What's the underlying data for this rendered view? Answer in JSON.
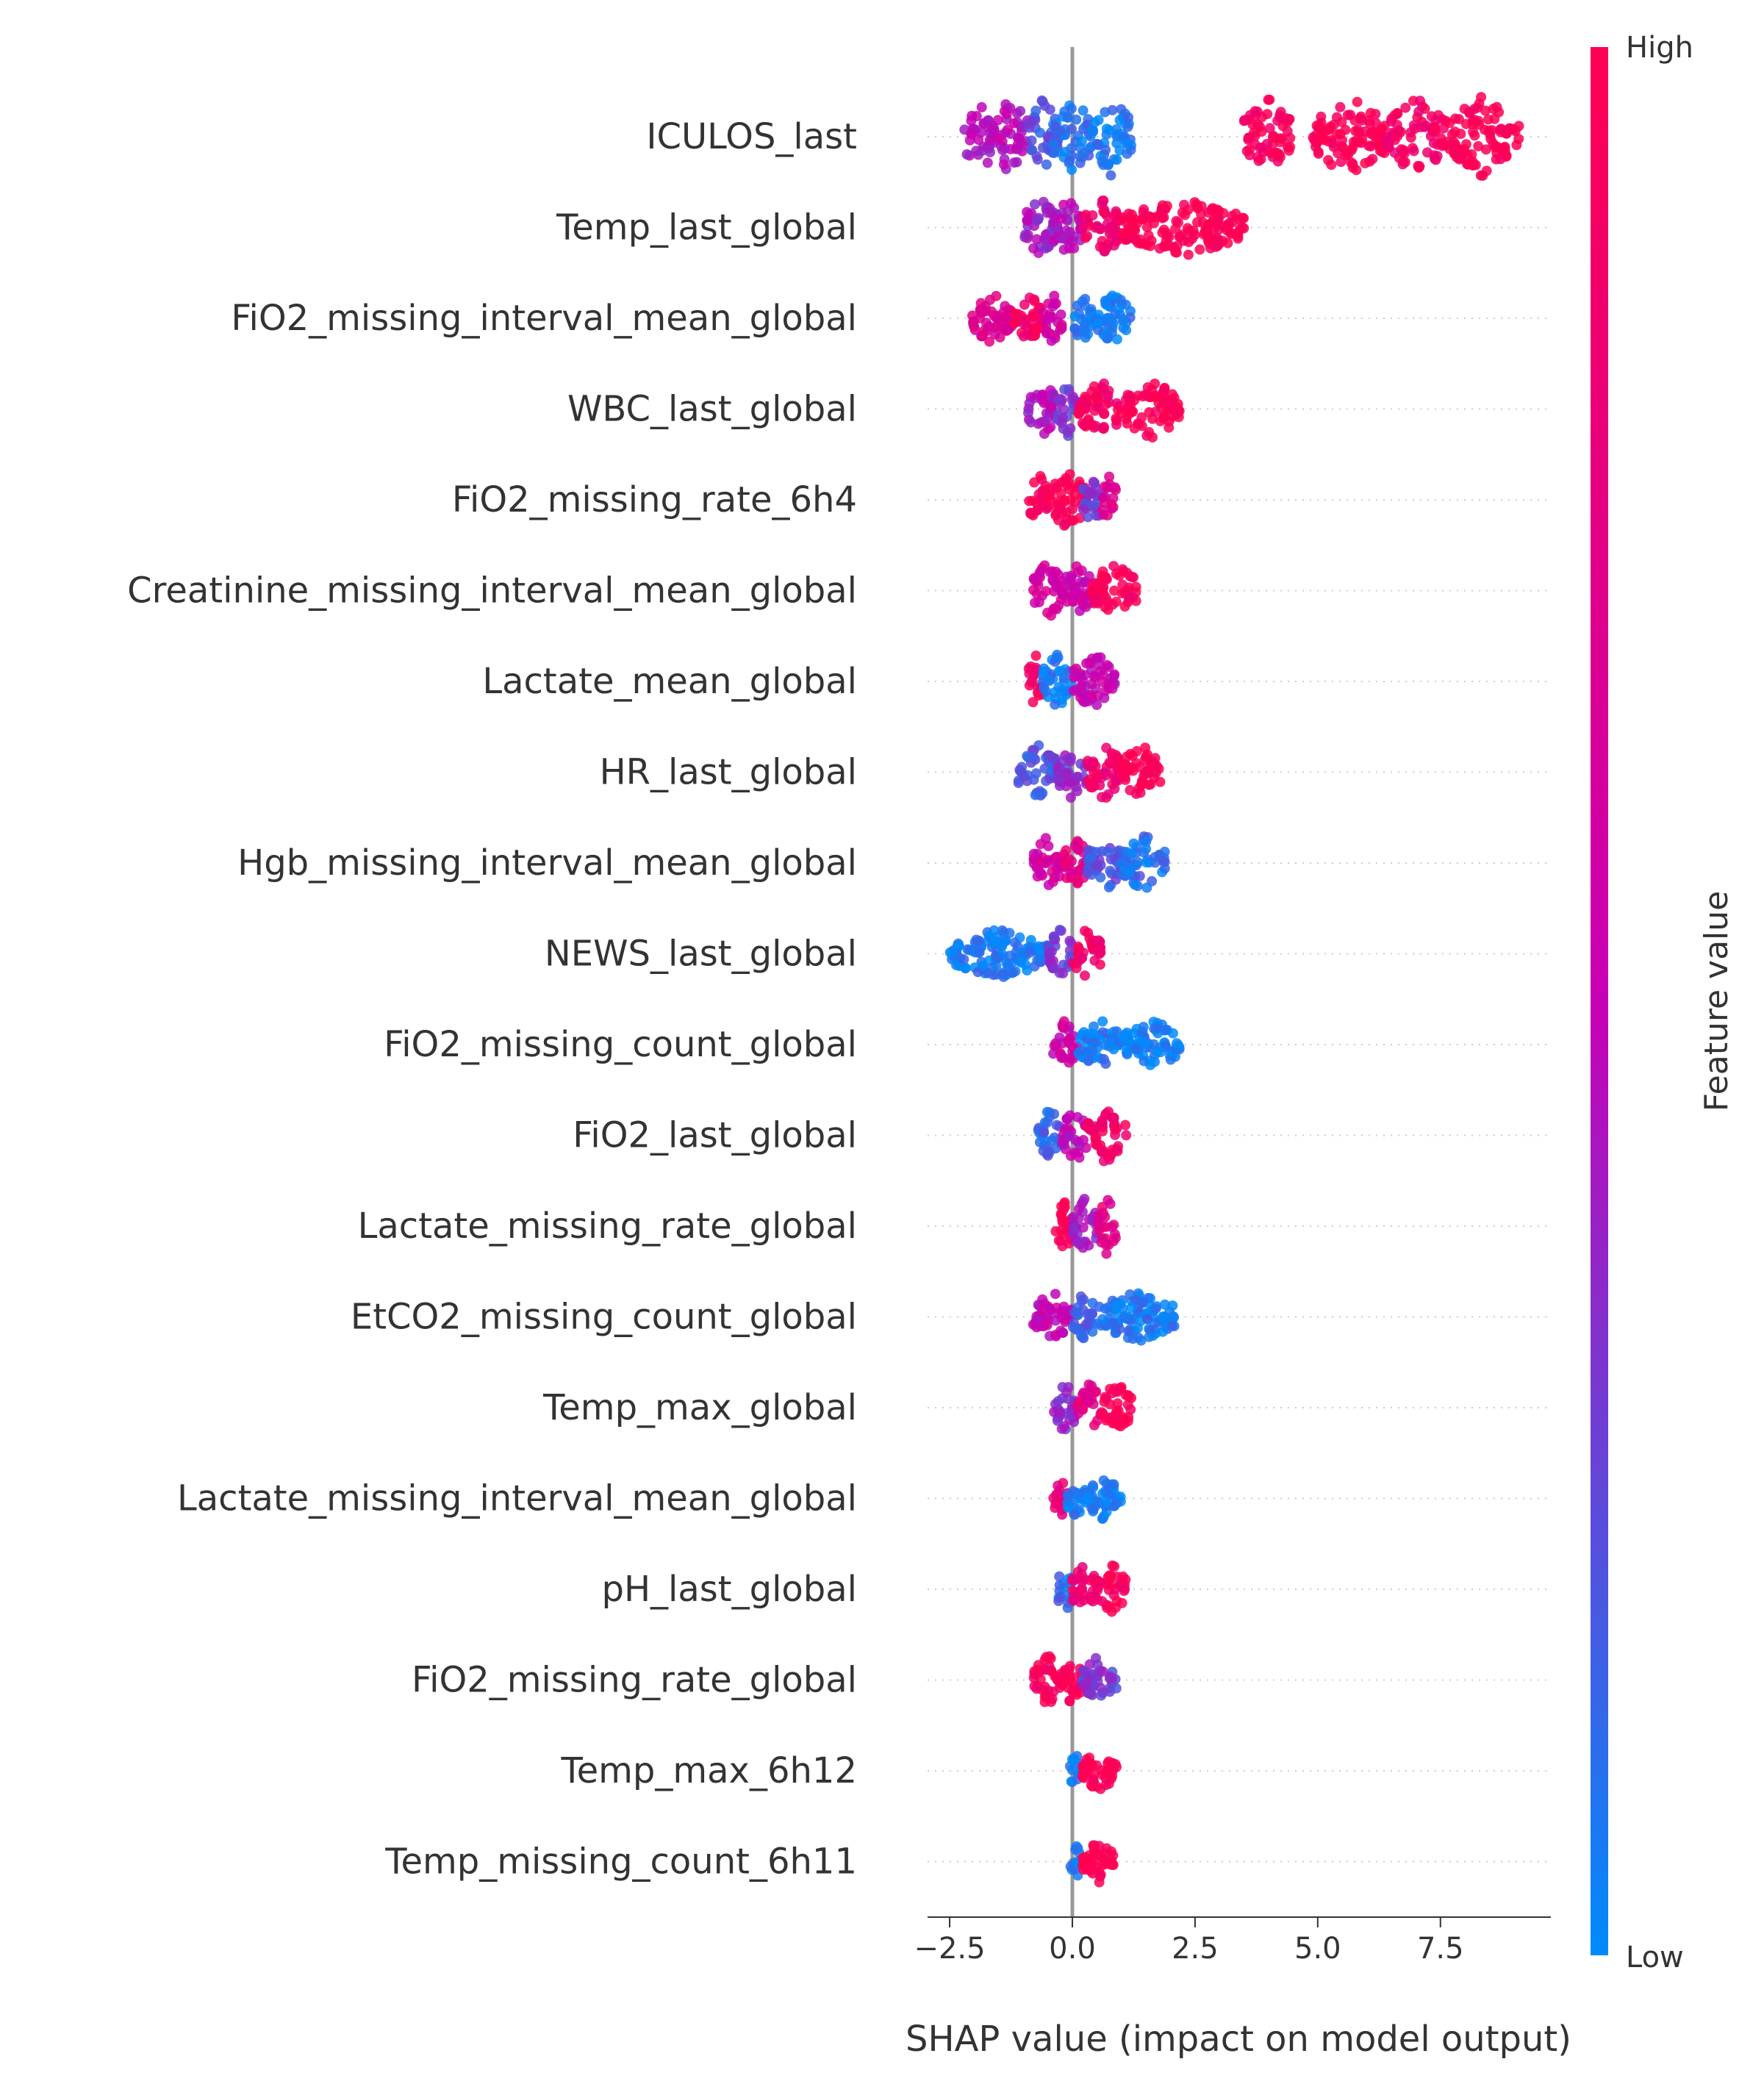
{
  "chart_data": {
    "type": "scatter",
    "subtype": "shap-beeswarm-summary",
    "xlabel": "SHAP value (impact on model output)",
    "xlim": [
      -2.95,
      9.75
    ],
    "xticks": [
      -2.5,
      0.0,
      2.5,
      5.0,
      7.5
    ],
    "xtick_labels": [
      "−2.5",
      "0.0",
      "2.5",
      "5.0",
      "7.5"
    ],
    "zero_line": 0.0,
    "grid": false,
    "colorbar": {
      "label": "Feature value",
      "high_label": "High",
      "low_label": "Low",
      "high_color": "#ff0052",
      "mid_color": "#c800b4",
      "low_color": "#008bfb"
    },
    "features": [
      {
        "name": "ICULOS_last",
        "segments": [
          [
            -2.2,
            -1.6,
            0.45
          ],
          [
            -1.6,
            -0.9,
            0.45
          ],
          [
            -0.9,
            -0.3,
            0.2
          ],
          [
            -0.4,
            0.4,
            0.1
          ],
          [
            0.4,
            1.2,
            0.05
          ],
          [
            3.5,
            4.5,
            0.95
          ],
          [
            4.9,
            6.4,
            1.0
          ],
          [
            6.4,
            7.6,
            0.9
          ],
          [
            7.6,
            9.1,
            1.0
          ]
        ],
        "size": 55
      },
      {
        "name": "Temp_last_global",
        "segments": [
          [
            -1.0,
            -0.3,
            0.4
          ],
          [
            -0.4,
            0.2,
            0.45
          ],
          [
            0.2,
            1.0,
            0.85
          ],
          [
            1.0,
            3.5,
            1.0
          ]
        ],
        "size": 40
      },
      {
        "name": "FiO2_missing_interval_mean_global",
        "segments": [
          [
            -2.1,
            -1.2,
            0.7
          ],
          [
            -1.2,
            -0.6,
            0.9
          ],
          [
            -0.6,
            -0.2,
            0.6
          ],
          [
            0.0,
            0.4,
            0.05
          ],
          [
            0.4,
            1.2,
            0.05
          ]
        ],
        "size": 35
      },
      {
        "name": "WBC_last_global",
        "segments": [
          [
            -0.9,
            -0.3,
            0.45
          ],
          [
            -0.3,
            0.1,
            0.3
          ],
          [
            0.1,
            1.0,
            0.9
          ],
          [
            1.0,
            2.2,
            1.0
          ]
        ],
        "size": 40
      },
      {
        "name": "FiO2_missing_rate_6h4",
        "segments": [
          [
            -0.9,
            -0.5,
            0.95
          ],
          [
            -0.5,
            0.3,
            1.0
          ],
          [
            0.2,
            0.6,
            0.3
          ],
          [
            0.6,
            0.9,
            0.7
          ]
        ],
        "size": 40
      },
      {
        "name": "Creatinine_missing_interval_mean_global",
        "segments": [
          [
            -0.8,
            -0.2,
            0.6
          ],
          [
            -0.2,
            0.4,
            0.55
          ],
          [
            0.4,
            1.3,
            0.95
          ]
        ],
        "size": 40
      },
      {
        "name": "Lactate_mean_global",
        "segments": [
          [
            -0.9,
            -0.6,
            0.9
          ],
          [
            -0.6,
            0.0,
            0.05
          ],
          [
            0.0,
            0.9,
            0.5
          ]
        ],
        "size": 40
      },
      {
        "name": "HR_last_global",
        "segments": [
          [
            -1.1,
            -0.3,
            0.2
          ],
          [
            -0.3,
            0.3,
            0.35
          ],
          [
            0.3,
            1.0,
            0.85
          ],
          [
            1.0,
            1.8,
            1.0
          ]
        ],
        "size": 40
      },
      {
        "name": "Hgb_missing_interval_mean_global",
        "segments": [
          [
            -0.8,
            -0.2,
            0.6
          ],
          [
            -0.2,
            0.3,
            0.75
          ],
          [
            0.3,
            1.0,
            0.2
          ],
          [
            1.0,
            1.9,
            0.1
          ]
        ],
        "size": 40
      },
      {
        "name": "NEWS_last_global",
        "segments": [
          [
            -2.5,
            -0.5,
            0.05
          ],
          [
            -0.5,
            0.0,
            0.3
          ],
          [
            0.0,
            0.6,
            0.9
          ]
        ],
        "size": 35
      },
      {
        "name": "FiO2_missing_count_global",
        "segments": [
          [
            -0.4,
            0.1,
            0.55
          ],
          [
            0.1,
            1.0,
            0.05
          ],
          [
            1.0,
            2.2,
            0.03
          ]
        ],
        "size": 35
      },
      {
        "name": "FiO2_last_global",
        "segments": [
          [
            -0.7,
            -0.2,
            0.15
          ],
          [
            -0.2,
            0.3,
            0.5
          ],
          [
            0.3,
            1.1,
            0.9
          ]
        ],
        "size": 40
      },
      {
        "name": "Lactate_missing_rate_global",
        "segments": [
          [
            -0.4,
            0.0,
            1.0
          ],
          [
            0.0,
            0.5,
            0.4
          ],
          [
            0.5,
            0.9,
            0.75
          ]
        ],
        "size": 40
      },
      {
        "name": "EtCO2_missing_count_global",
        "segments": [
          [
            -0.8,
            0.0,
            0.5
          ],
          [
            0.0,
            0.5,
            0.15
          ],
          [
            0.5,
            2.1,
            0.05
          ]
        ],
        "size": 35
      },
      {
        "name": "Temp_max_global",
        "segments": [
          [
            -0.4,
            0.1,
            0.35
          ],
          [
            0.1,
            0.6,
            0.75
          ],
          [
            0.6,
            1.2,
            1.0
          ]
        ],
        "size": 35
      },
      {
        "name": "Lactate_missing_interval_mean_global",
        "segments": [
          [
            -0.4,
            -0.1,
            0.8
          ],
          [
            -0.1,
            0.3,
            0.05
          ],
          [
            0.3,
            1.0,
            0.05
          ]
        ],
        "size": 30
      },
      {
        "name": "pH_last_global",
        "segments": [
          [
            -0.3,
            0.0,
            0.1
          ],
          [
            0.0,
            0.5,
            0.85
          ],
          [
            0.5,
            1.1,
            0.95
          ]
        ],
        "size": 35
      },
      {
        "name": "FiO2_missing_rate_global",
        "segments": [
          [
            -0.8,
            -0.2,
            0.95
          ],
          [
            -0.2,
            0.2,
            1.0
          ],
          [
            0.2,
            0.9,
            0.3
          ]
        ],
        "size": 35
      },
      {
        "name": "Temp_max_6h12",
        "segments": [
          [
            -0.05,
            0.15,
            0.05
          ],
          [
            0.2,
            0.9,
            1.0
          ]
        ],
        "size": 30
      },
      {
        "name": "Temp_missing_count_6h11",
        "segments": [
          [
            -0.05,
            0.15,
            0.05
          ],
          [
            0.2,
            0.85,
            1.0
          ]
        ],
        "size": 30
      }
    ]
  }
}
